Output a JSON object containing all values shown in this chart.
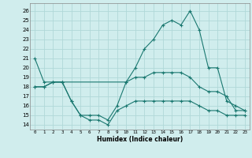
{
  "xlabel": "Humidex (Indice chaleur)",
  "xlim": [
    -0.5,
    23.5
  ],
  "ylim": [
    13.5,
    26.8
  ],
  "yticks": [
    14,
    15,
    16,
    17,
    18,
    19,
    20,
    21,
    22,
    23,
    24,
    25,
    26
  ],
  "xticks": [
    0,
    1,
    2,
    3,
    4,
    5,
    6,
    7,
    8,
    9,
    10,
    11,
    12,
    13,
    14,
    15,
    16,
    17,
    18,
    19,
    20,
    21,
    22,
    23
  ],
  "bg_color": "#d0eded",
  "line_color": "#1a7870",
  "grid_color": "#b0d8d8",
  "line1_x": [
    0,
    1,
    2,
    3,
    10,
    11,
    12,
    13,
    14,
    15,
    16,
    17,
    18,
    19,
    20,
    21,
    22,
    23
  ],
  "line1_y": [
    21,
    18.5,
    18.5,
    18.5,
    18.5,
    20,
    22,
    23,
    24.5,
    25,
    24.5,
    26,
    24,
    20,
    20,
    16.5,
    16,
    15.5
  ],
  "line2_x": [
    0,
    1,
    2,
    3,
    4,
    5,
    6,
    7,
    8,
    9,
    10,
    11,
    12,
    13,
    14,
    15,
    16,
    17,
    18,
    19,
    20,
    21,
    22,
    23
  ],
  "line2_y": [
    18,
    18,
    18.5,
    18.5,
    16.5,
    15,
    15,
    15,
    14.5,
    16,
    18.5,
    19,
    19,
    19.5,
    19.5,
    19.5,
    19.5,
    19,
    18,
    17.5,
    17.5,
    17,
    15.5,
    15.5
  ],
  "line3_x": [
    0,
    1,
    2,
    3,
    4,
    5,
    6,
    7,
    8,
    9,
    10,
    11,
    12,
    13,
    14,
    15,
    16,
    17,
    18,
    19,
    20,
    21,
    22,
    23
  ],
  "line3_y": [
    18,
    18,
    18.5,
    18.5,
    16.5,
    15,
    14.5,
    14.5,
    14,
    15.5,
    16,
    16.5,
    16.5,
    16.5,
    16.5,
    16.5,
    16.5,
    16.5,
    16,
    15.5,
    15.5,
    15,
    15,
    15
  ]
}
